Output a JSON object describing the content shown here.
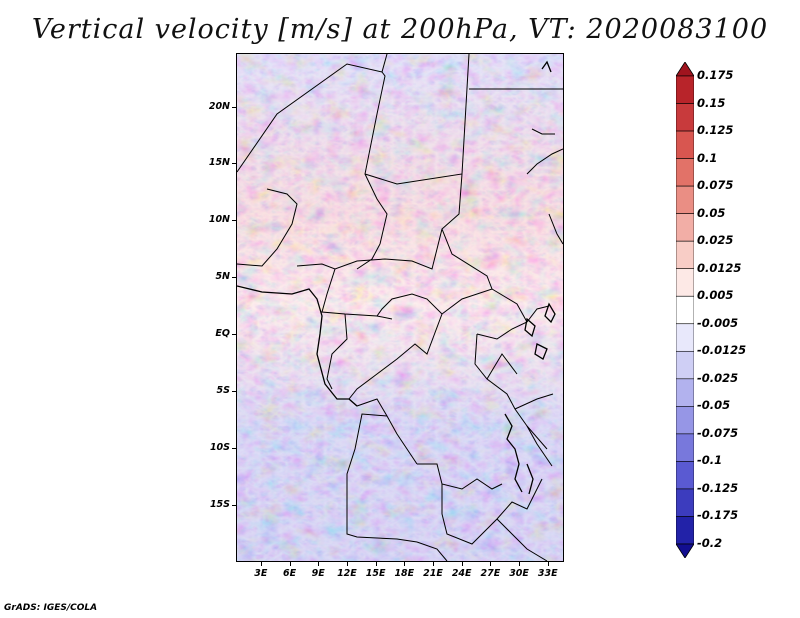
{
  "title": "Vertical velocity [m/s] at 200hPa, VT: 2020083100",
  "map": {
    "lat_labels": [
      "20N",
      "15N",
      "10N",
      "5N",
      "EQ",
      "5S",
      "10S",
      "15S"
    ],
    "lon_labels": [
      "3E",
      "6E",
      "9E",
      "12E",
      "15E",
      "18E",
      "21E",
      "24E",
      "27E",
      "30E",
      "33E"
    ],
    "lat_values": [
      20,
      15,
      10,
      5,
      0,
      -5,
      -10,
      -15
    ],
    "lon_values": [
      3,
      6,
      9,
      12,
      15,
      18,
      21,
      24,
      27,
      30,
      33
    ],
    "lat_range": [
      -20,
      24.7
    ],
    "lon_range": [
      0.4,
      34.7
    ]
  },
  "colorbar": {
    "levels": [
      "0.175",
      "0.15",
      "0.125",
      "0.1",
      "0.075",
      "0.05",
      "0.025",
      "0.0125",
      "0.005",
      "-0.005",
      "-0.0125",
      "-0.025",
      "-0.05",
      "-0.075",
      "-0.1",
      "-0.125",
      "-0.175",
      "-0.2"
    ],
    "colors": [
      "#a0141e",
      "#b8242a",
      "#c83a3c",
      "#d85650",
      "#e27268",
      "#ea8e84",
      "#f2ae a6",
      "#f8cdc6",
      "#fde9e6",
      "#ffffff",
      "#e8e8fb",
      "#cfcff5",
      "#b2b2ee",
      "#9696e6",
      "#7878dc",
      "#5a5ad2",
      "#3c3cbe",
      "#2222a8",
      "#120e90"
    ]
  },
  "credit": "GrADS: IGES/COLA"
}
